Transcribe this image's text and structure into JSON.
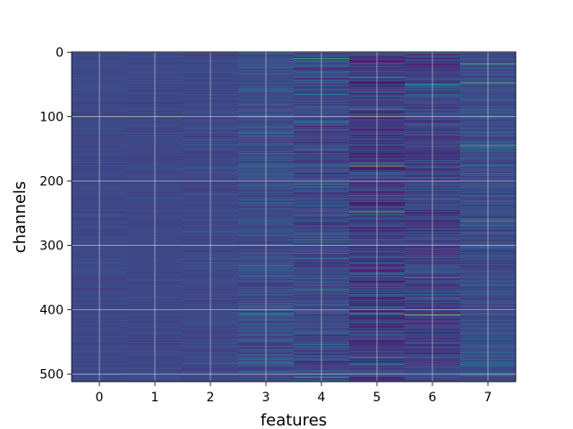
{
  "chart_data": {
    "type": "heatmap",
    "title": "",
    "xlabel": "features",
    "ylabel": "channels",
    "x_ticks": [
      0,
      1,
      2,
      3,
      4,
      5,
      6,
      7
    ],
    "y_ticks": [
      0,
      100,
      200,
      300,
      400,
      500
    ],
    "xlim": [
      -0.5,
      7.5
    ],
    "ylim": [
      511.5,
      -0.5
    ],
    "n_channels": 512,
    "n_features": 8,
    "colormap": "viridis",
    "grid": true,
    "column_contrast": [
      0.18,
      0.22,
      0.28,
      0.55,
      0.7,
      0.85,
      0.75,
      0.6
    ],
    "column_mean": [
      0.22,
      0.22,
      0.22,
      0.24,
      0.22,
      0.18,
      0.2,
      0.24
    ],
    "bright_stripes": [
      {
        "feature": 4,
        "channel": 10,
        "value": 0.7
      },
      {
        "feature": 5,
        "channel": 177,
        "value": 0.85
      },
      {
        "feature": 5,
        "channel": 248,
        "value": 0.8
      },
      {
        "feature": 6,
        "channel": 408,
        "value": 0.8
      },
      {
        "feature": 7,
        "channel": 18,
        "value": 0.7
      },
      {
        "feature": 7,
        "channel": 48,
        "value": 0.75
      },
      {
        "feature": 7,
        "channel": 145,
        "value": 0.7
      },
      {
        "feature": 7,
        "channel": 262,
        "value": 0.7
      }
    ],
    "colors": {
      "background": "#ffffff",
      "grid": "#ffffff",
      "axis": "#000000"
    }
  }
}
